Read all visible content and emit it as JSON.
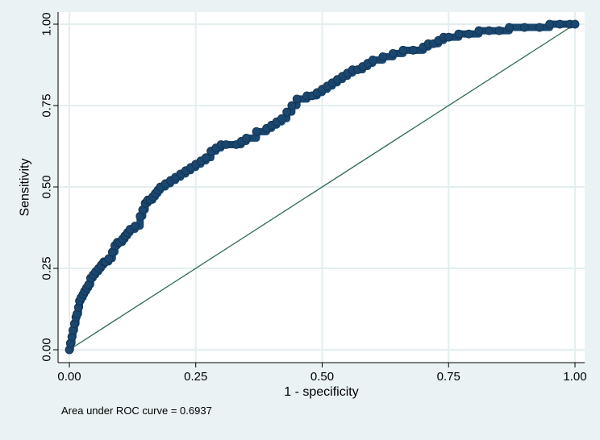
{
  "chart_data": {
    "type": "line",
    "title": "",
    "xlabel": "1 - specificity",
    "ylabel": "Sensitivity",
    "xlim": [
      0,
      1
    ],
    "ylim": [
      0,
      1
    ],
    "xticks": [
      "0.00",
      "0.25",
      "0.50",
      "0.75",
      "1.00"
    ],
    "yticks": [
      "0.00",
      "0.25",
      "0.50",
      "0.75",
      "1.00"
    ],
    "grid": true,
    "note": "Area under ROC curve = 0.6937",
    "colors": {
      "background": "#eaf2f3",
      "plot_background": "#ffffff",
      "grid": "#e4eef0",
      "roc_curve": "#1a476f",
      "reference_line": "#2d6a4f"
    },
    "series": [
      {
        "marker": "filled-circle",
        "x": [
          0.0,
          0.002,
          0.005,
          0.007,
          0.01,
          0.013,
          0.015,
          0.018,
          0.02,
          0.023,
          0.027,
          0.03,
          0.034,
          0.038,
          0.042,
          0.047,
          0.052,
          0.058,
          0.063,
          0.068,
          0.072,
          0.078,
          0.085,
          0.09,
          0.095,
          0.1,
          0.105,
          0.11,
          0.115,
          0.12,
          0.13,
          0.14,
          0.145,
          0.15,
          0.155,
          0.16,
          0.165,
          0.17,
          0.175,
          0.18,
          0.19,
          0.2,
          0.21,
          0.22,
          0.23,
          0.24,
          0.25,
          0.26,
          0.27,
          0.28,
          0.29,
          0.3,
          0.31,
          0.33,
          0.34,
          0.35,
          0.37,
          0.39,
          0.4,
          0.41,
          0.42,
          0.43,
          0.44,
          0.45,
          0.47,
          0.48,
          0.49,
          0.5,
          0.51,
          0.52,
          0.53,
          0.54,
          0.55,
          0.56,
          0.57,
          0.58,
          0.59,
          0.6,
          0.62,
          0.64,
          0.66,
          0.68,
          0.7,
          0.71,
          0.72,
          0.73,
          0.74,
          0.75,
          0.77,
          0.79,
          0.81,
          0.83,
          0.85,
          0.87,
          0.9,
          0.93,
          0.95,
          0.97,
          0.99,
          1.0
        ],
        "y": [
          0.0,
          0.02,
          0.04,
          0.06,
          0.08,
          0.1,
          0.11,
          0.13,
          0.15,
          0.16,
          0.17,
          0.18,
          0.19,
          0.2,
          0.22,
          0.23,
          0.24,
          0.25,
          0.26,
          0.27,
          0.27,
          0.28,
          0.3,
          0.32,
          0.33,
          0.33,
          0.34,
          0.35,
          0.36,
          0.37,
          0.38,
          0.41,
          0.43,
          0.45,
          0.46,
          0.46,
          0.47,
          0.48,
          0.49,
          0.5,
          0.51,
          0.52,
          0.53,
          0.54,
          0.55,
          0.56,
          0.57,
          0.58,
          0.59,
          0.61,
          0.62,
          0.63,
          0.63,
          0.63,
          0.64,
          0.65,
          0.67,
          0.68,
          0.69,
          0.7,
          0.71,
          0.73,
          0.75,
          0.77,
          0.78,
          0.78,
          0.79,
          0.8,
          0.81,
          0.82,
          0.83,
          0.84,
          0.85,
          0.86,
          0.86,
          0.87,
          0.88,
          0.89,
          0.9,
          0.91,
          0.92,
          0.92,
          0.93,
          0.94,
          0.94,
          0.95,
          0.96,
          0.96,
          0.97,
          0.97,
          0.98,
          0.98,
          0.98,
          0.99,
          0.99,
          0.99,
          1.0,
          1.0,
          1.0,
          1.0
        ]
      },
      {
        "type": "line",
        "x": [
          0,
          1
        ],
        "y": [
          0,
          1
        ]
      }
    ]
  }
}
